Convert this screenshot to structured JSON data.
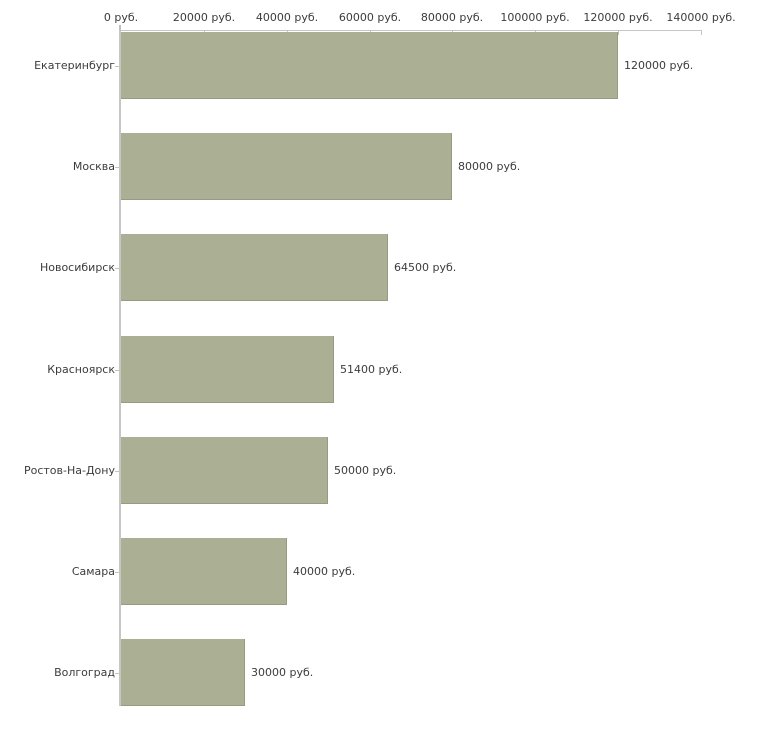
{
  "chart_data": {
    "type": "bar",
    "orientation": "horizontal",
    "title": "",
    "categories": [
      "Екатеринбург",
      "Москва",
      "Новосибирск",
      "Красноярск",
      "Ростов-На-Дону",
      "Самара",
      "Волгоград"
    ],
    "values": [
      120000,
      80000,
      64500,
      51400,
      50000,
      40000,
      30000
    ],
    "value_labels": [
      "120000 руб.",
      "80000 руб.",
      "64500 руб.",
      "51400 руб.",
      "50000 руб.",
      "40000 руб.",
      "30000 руб."
    ],
    "x_axis": {
      "position": "top",
      "range": [
        0,
        140000
      ],
      "ticks": [
        0,
        20000,
        40000,
        60000,
        80000,
        100000,
        120000,
        140000
      ],
      "tick_labels": [
        "0 руб.",
        "20000 руб.",
        "40000 руб.",
        "60000 руб.",
        "80000 руб.",
        "100000 руб.",
        "120000 руб.",
        "140000 руб."
      ]
    },
    "grid": false,
    "legend": false,
    "colors": {
      "bar_fill": "#abb095",
      "axis_line": "#c6c6c6",
      "tick_mark": "#c8c9a4",
      "text": "#3c3c3c",
      "background": "#ffffff"
    }
  }
}
